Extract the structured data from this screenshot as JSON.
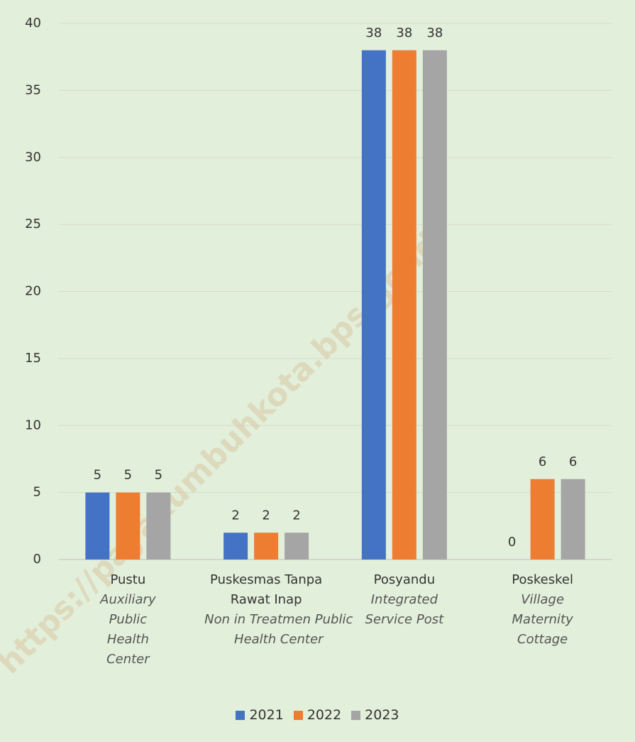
{
  "chart_data": {
    "type": "bar",
    "categories": [
      "Pustu",
      "Puskesmas Tanpa Rawat Inap",
      "Posyandu",
      "Poskeskel"
    ],
    "category_translations": [
      "Auxiliary Public Health Center",
      "Non in Treatmen Public  Health Center",
      "Integrated Service Post",
      "Village Maternity Cottage"
    ],
    "series": [
      {
        "name": "2021",
        "color": "#4472c4",
        "values": [
          5,
          2,
          38,
          0
        ]
      },
      {
        "name": "2022",
        "color": "#ed7d31",
        "values": [
          5,
          2,
          38,
          6
        ]
      },
      {
        "name": "2023",
        "color": "#a5a5a5",
        "values": [
          5,
          2,
          38,
          6
        ]
      }
    ],
    "ylim": [
      0,
      40
    ],
    "yticks": [
      0,
      5,
      10,
      15,
      20,
      25,
      30,
      35,
      40
    ],
    "grid": true,
    "legend": "bottom",
    "watermark": "https://payakumbuhkota.bps.go.id"
  }
}
